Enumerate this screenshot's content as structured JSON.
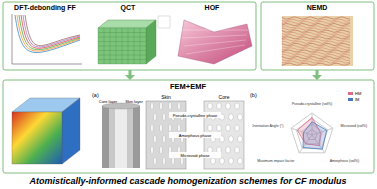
{
  "diagram": {
    "title": "Atomistically-informed cascade homogenization schemes for CF modulus",
    "top_panels": {
      "dft": "DFT-debonding FF",
      "qct": "QCT",
      "hof": "HOF",
      "nemd": "NEMD"
    },
    "middle": {
      "title": "FEM+EMF",
      "panel_a": {
        "label": "(a)",
        "core_layer": "Core layer",
        "skin_layer": "Skin layer",
        "skin": "Skin",
        "core": "Core",
        "phases": [
          "Pseudo-crystalline phase",
          "Amorphous phase",
          "Microvoid phase"
        ]
      },
      "panel_b": {
        "label": "(b)"
      }
    }
  },
  "chart_data": {
    "type": "radar",
    "categories": [
      "Pseudo-crystalline (vol%)",
      "Microvoid (vol%)",
      "Amorphous (vol%)",
      "Maximum impact factor",
      "Orientation Angle (°)"
    ],
    "series": [
      {
        "name": "HM",
        "color": "#e06a8a",
        "values": [
          80,
          40,
          60,
          50,
          70
        ]
      },
      {
        "name": "IM",
        "color": "#4a78c0",
        "values": [
          60,
          70,
          80,
          70,
          40
        ]
      }
    ],
    "ylim": [
      0,
      100
    ],
    "tick_labels": "x",
    "grid": true,
    "legend": "upper right"
  }
}
